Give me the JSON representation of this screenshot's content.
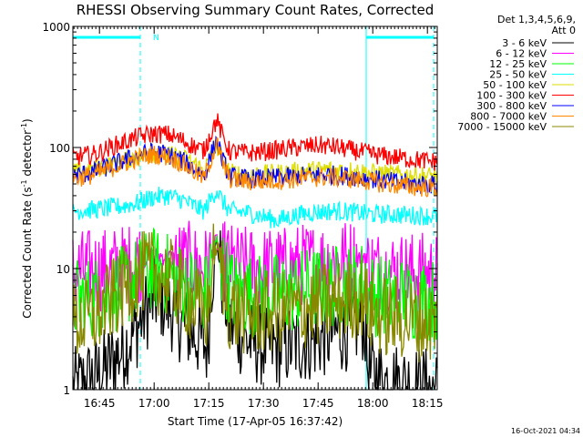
{
  "chart_data": {
    "type": "line",
    "title": "RHESSI Observing Summary Count Rates, Corrected",
    "xlabel": "Start Time (17-Apr-05 16:37:42)",
    "ylabel_main": "Corrected Count Rate (s",
    "ylabel_sup1": "-1",
    "ylabel_mid": " detector",
    "ylabel_sup2": "-1",
    "ylabel_end": ")",
    "y_scale": "log",
    "ylim": [
      1,
      1000
    ],
    "y_ticks": [
      {
        "v": 1,
        "label": "1"
      },
      {
        "v": 10,
        "label": "10"
      },
      {
        "v": 100,
        "label": "100"
      },
      {
        "v": 1000,
        "label": "1000"
      }
    ],
    "xlim_minutes": [
      0,
      100
    ],
    "x_ticks": [
      {
        "t": 7.3,
        "label": "16:45"
      },
      {
        "t": 22.3,
        "label": "17:00"
      },
      {
        "t": 37.3,
        "label": "17:15"
      },
      {
        "t": 52.3,
        "label": "17:30"
      },
      {
        "t": 67.3,
        "label": "17:45"
      },
      {
        "t": 82.3,
        "label": "18:00"
      },
      {
        "t": 97.3,
        "label": "18:15"
      }
    ],
    "legend_header": [
      "Det 1,3,4,5,6,9,",
      "Att 0"
    ],
    "legend_position": "top-right",
    "night_bars": [
      [
        0,
        18.5
      ],
      [
        80.5,
        99
      ]
    ],
    "night_marker": {
      "t": 20.5,
      "label": "N"
    },
    "dashed_lines": [
      18.5,
      80.5,
      99
    ],
    "solid_lines": [
      80.5
    ],
    "series": [
      {
        "name": "3 - 6 keV",
        "color": "#000000",
        "points": [
          [
            0,
            1.0
          ],
          [
            8,
            1.4
          ],
          [
            14,
            2.2
          ],
          [
            17,
            3.0
          ],
          [
            20,
            4.5
          ],
          [
            23,
            6.0
          ],
          [
            26,
            5.0
          ],
          [
            30,
            3.5
          ],
          [
            35,
            2.6
          ],
          [
            37,
            2.2
          ],
          [
            38,
            8
          ],
          [
            39.5,
            17
          ],
          [
            41,
            8
          ],
          [
            43,
            3.5
          ],
          [
            48,
            2.5
          ],
          [
            55,
            2.2
          ],
          [
            62,
            2.4
          ],
          [
            70,
            2.8
          ],
          [
            76,
            3.2
          ],
          [
            80,
            3.8
          ],
          [
            81,
            1.4
          ],
          [
            85,
            1.2
          ],
          [
            92,
            1.1
          ],
          [
            100,
            1.0
          ]
        ]
      },
      {
        "name": "6 - 12 keV",
        "color": "#ff00ff",
        "points": [
          [
            0,
            9.5
          ],
          [
            8,
            9.8
          ],
          [
            14,
            10.5
          ],
          [
            18,
            11.5
          ],
          [
            22,
            13.0
          ],
          [
            26,
            12.5
          ],
          [
            30,
            11.5
          ],
          [
            35,
            10.5
          ],
          [
            37,
            10.0
          ],
          [
            38,
            13
          ],
          [
            39.5,
            17
          ],
          [
            41,
            12
          ],
          [
            44,
            10.5
          ],
          [
            50,
            10.0
          ],
          [
            58,
            10.2
          ],
          [
            65,
            11.0
          ],
          [
            72,
            11.5
          ],
          [
            78,
            12.0
          ],
          [
            80,
            13
          ],
          [
            81,
            10.2
          ],
          [
            86,
            9.5
          ],
          [
            93,
            9.2
          ],
          [
            100,
            9.0
          ]
        ]
      },
      {
        "name": "12 - 25 keV",
        "color": "#00ff00",
        "points": [
          [
            0,
            5.5
          ],
          [
            8,
            6.0
          ],
          [
            14,
            7.0
          ],
          [
            18,
            8.5
          ],
          [
            22,
            10.0
          ],
          [
            26,
            9.0
          ],
          [
            30,
            7.5
          ],
          [
            35,
            6.5
          ],
          [
            37,
            6.2
          ],
          [
            38,
            11
          ],
          [
            39.5,
            17
          ],
          [
            41,
            10
          ],
          [
            44,
            6.5
          ],
          [
            50,
            6.0
          ],
          [
            58,
            6.2
          ],
          [
            65,
            6.8
          ],
          [
            72,
            7.2
          ],
          [
            78,
            7.5
          ],
          [
            80,
            8.0
          ],
          [
            81,
            6.2
          ],
          [
            86,
            5.8
          ],
          [
            93,
            5.6
          ],
          [
            100,
            5.5
          ]
        ]
      },
      {
        "name": "25 - 50 keV",
        "color": "#00ffff",
        "points": [
          [
            0,
            30
          ],
          [
            8,
            31
          ],
          [
            14,
            33
          ],
          [
            18,
            35
          ],
          [
            22,
            39
          ],
          [
            26,
            40
          ],
          [
            30,
            37
          ],
          [
            33,
            33
          ],
          [
            36,
            30
          ],
          [
            38,
            38
          ],
          [
            39.5,
            45
          ],
          [
            41,
            36
          ],
          [
            43,
            30
          ],
          [
            48,
            29
          ],
          [
            52,
            27
          ],
          [
            56,
            25
          ],
          [
            60,
            27
          ],
          [
            65,
            29
          ],
          [
            72,
            30
          ],
          [
            78,
            29
          ],
          [
            82,
            28
          ],
          [
            88,
            28
          ],
          [
            94,
            27.5
          ],
          [
            100,
            27
          ]
        ]
      },
      {
        "name": "50 - 100 keV",
        "color": "#dddd00",
        "points": [
          [
            0,
            62
          ],
          [
            6,
            66
          ],
          [
            12,
            75
          ],
          [
            18,
            85
          ],
          [
            22,
            90
          ],
          [
            26,
            87
          ],
          [
            30,
            82
          ],
          [
            33,
            75
          ],
          [
            36,
            65
          ],
          [
            38,
            85
          ],
          [
            39.5,
            105
          ],
          [
            41,
            80
          ],
          [
            43,
            62
          ],
          [
            48,
            60
          ],
          [
            55,
            61
          ],
          [
            62,
            64
          ],
          [
            70,
            66
          ],
          [
            76,
            65
          ],
          [
            82,
            62
          ],
          [
            88,
            60
          ],
          [
            94,
            59
          ],
          [
            100,
            58
          ]
        ]
      },
      {
        "name": "100 - 300 keV",
        "color": "#ff0000",
        "points": [
          [
            0,
            83
          ],
          [
            6,
            88
          ],
          [
            12,
            105
          ],
          [
            18,
            122
          ],
          [
            22,
            130
          ],
          [
            26,
            128
          ],
          [
            30,
            115
          ],
          [
            33,
            103
          ],
          [
            36,
            94
          ],
          [
            38,
            135
          ],
          [
            39.5,
            170
          ],
          [
            41,
            125
          ],
          [
            43,
            93
          ],
          [
            48,
            90
          ],
          [
            52,
            92
          ],
          [
            58,
            97
          ],
          [
            64,
            102
          ],
          [
            68,
            104
          ],
          [
            72,
            101
          ],
          [
            78,
            93
          ],
          [
            84,
            86
          ],
          [
            90,
            82
          ],
          [
            96,
            78
          ],
          [
            100,
            76
          ]
        ]
      },
      {
        "name": "300 - 800 keV",
        "color": "#0000ff",
        "points": [
          [
            0,
            58
          ],
          [
            6,
            63
          ],
          [
            12,
            74
          ],
          [
            18,
            86
          ],
          [
            22,
            92
          ],
          [
            26,
            88
          ],
          [
            30,
            78
          ],
          [
            33,
            68
          ],
          [
            36,
            58
          ],
          [
            38,
            88
          ],
          [
            39.5,
            115
          ],
          [
            41,
            80
          ],
          [
            43,
            58
          ],
          [
            48,
            55
          ],
          [
            55,
            56
          ],
          [
            62,
            58
          ],
          [
            70,
            60
          ],
          [
            76,
            58
          ],
          [
            82,
            55
          ],
          [
            88,
            52
          ],
          [
            94,
            50
          ],
          [
            100,
            49
          ]
        ]
      },
      {
        "name": "800 - 7000 keV",
        "color": "#ff8800",
        "points": [
          [
            0,
            55
          ],
          [
            6,
            60
          ],
          [
            12,
            70
          ],
          [
            18,
            82
          ],
          [
            22,
            88
          ],
          [
            26,
            84
          ],
          [
            30,
            74
          ],
          [
            33,
            64
          ],
          [
            36,
            55
          ],
          [
            38,
            82
          ],
          [
            39.5,
            108
          ],
          [
            41,
            75
          ],
          [
            43,
            55
          ],
          [
            48,
            52
          ],
          [
            55,
            53
          ],
          [
            62,
            55
          ],
          [
            70,
            57
          ],
          [
            76,
            55
          ],
          [
            82,
            52
          ],
          [
            88,
            49
          ],
          [
            94,
            47
          ],
          [
            100,
            46
          ]
        ]
      },
      {
        "name": "7000 - 15000 keV",
        "color": "#888800",
        "points": [
          [
            0,
            3.5
          ],
          [
            6,
            4.0
          ],
          [
            12,
            6.0
          ],
          [
            16,
            8.0
          ],
          [
            20,
            9.5
          ],
          [
            24,
            9.0
          ],
          [
            28,
            7.5
          ],
          [
            32,
            5.5
          ],
          [
            35,
            4.5
          ],
          [
            37,
            4.2
          ],
          [
            38,
            9
          ],
          [
            39.5,
            16
          ],
          [
            41,
            9
          ],
          [
            43,
            4.5
          ],
          [
            48,
            4.2
          ],
          [
            55,
            4.3
          ],
          [
            62,
            4.6
          ],
          [
            70,
            5.2
          ],
          [
            76,
            5.5
          ],
          [
            80,
            6.0
          ],
          [
            81,
            4.5
          ],
          [
            86,
            4.0
          ],
          [
            93,
            3.8
          ],
          [
            100,
            3.6
          ]
        ]
      }
    ],
    "footer_date": "16-Oct-2021 04:34"
  }
}
